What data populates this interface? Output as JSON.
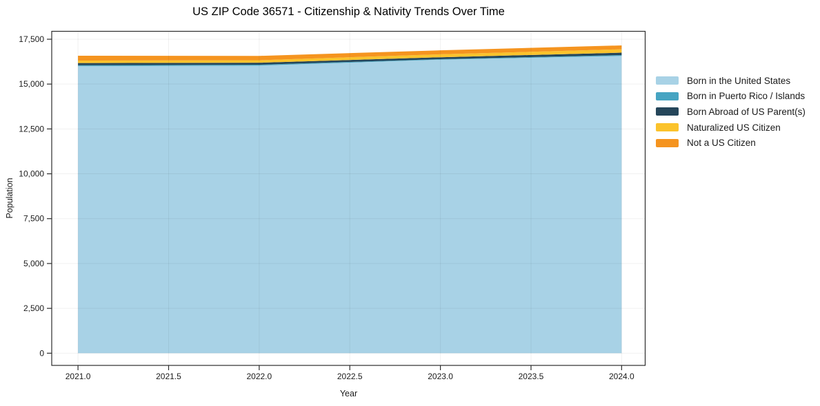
{
  "chart_data": {
    "type": "area",
    "stacked": true,
    "title": "US ZIP Code 36571 - Citizenship & Nativity Trends Over Time",
    "xlabel": "Year",
    "ylabel": "Population",
    "x": [
      2021,
      2022,
      2023,
      2024
    ],
    "series": [
      {
        "name": "Born in the United States",
        "color": "#a8d2e6",
        "values": [
          16000,
          16030,
          16360,
          16570
        ]
      },
      {
        "name": "Born in Puerto Rico / Islands",
        "color": "#46a4c2",
        "values": [
          50,
          50,
          30,
          50
        ]
      },
      {
        "name": "Born Abroad of US Parent(s)",
        "color": "#25465a",
        "values": [
          120,
          110,
          105,
          130
        ]
      },
      {
        "name": "Naturalized US Citizen",
        "color": "#fbc32c",
        "values": [
          140,
          140,
          165,
          190
        ]
      },
      {
        "name": "Not a US Citizen",
        "color": "#f5941f",
        "values": [
          270,
          240,
          220,
          215
        ]
      }
    ],
    "xlim": [
      2020.855,
      2024.13
    ],
    "ylim": [
      -679,
      17941
    ],
    "xticks": [
      2021.0,
      2021.5,
      2022.0,
      2022.5,
      2023.0,
      2023.5,
      2024.0
    ],
    "xtick_labels": [
      "2021.0",
      "2021.5",
      "2022.0",
      "2022.5",
      "2023.0",
      "2023.5",
      "2024.0"
    ],
    "yticks": [
      0,
      2500,
      5000,
      7500,
      10000,
      12500,
      15000,
      17500
    ],
    "ytick_labels": [
      "0",
      "2,500",
      "5,000",
      "7,500",
      "10,000",
      "12,500",
      "15,000",
      "17,500"
    ],
    "grid": true,
    "grid_color": "rgba(0,0,0,0.06)",
    "axis_color": "#2b2b2b",
    "legend_position": "right-outside"
  }
}
